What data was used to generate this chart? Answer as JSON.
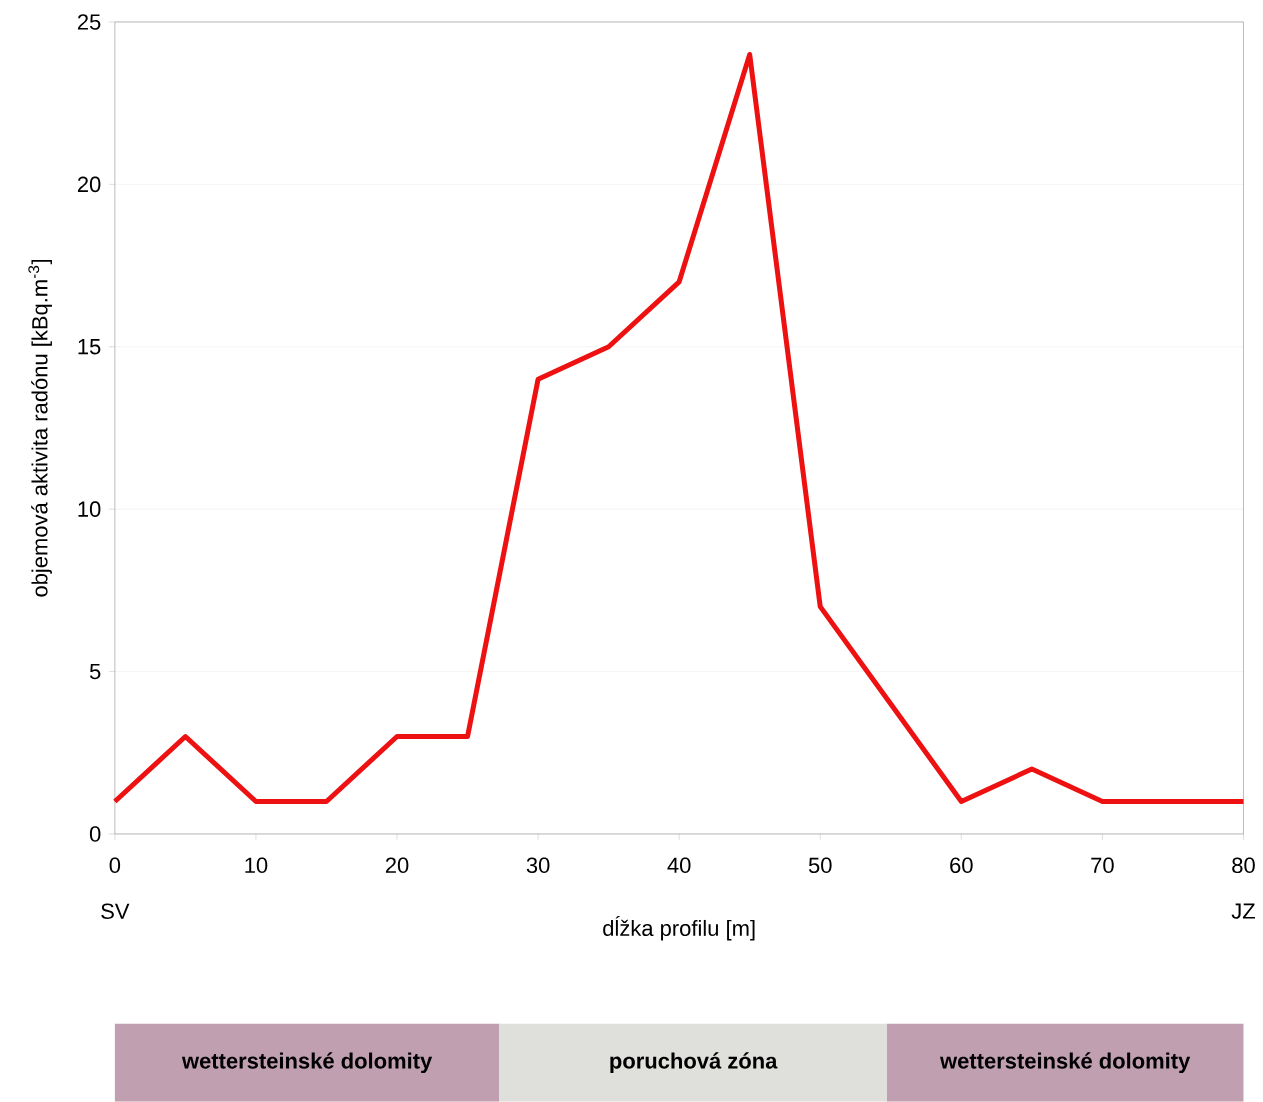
{
  "chart_data": {
    "type": "line",
    "xlabel": "dĺžka profilu [m]",
    "ylabel": "objemová aktivita radónu [kBq.m$^{-3}$]",
    "x": [
      0,
      5,
      10,
      15,
      20,
      25,
      30,
      35,
      40,
      45,
      50,
      55,
      60,
      65,
      70,
      75,
      80
    ],
    "series": [
      {
        "color": "#ee1111",
        "values": [
          1,
          3,
          1,
          1,
          3,
          3,
          14,
          15,
          17,
          24,
          7,
          4,
          1,
          2,
          1,
          1,
          1
        ]
      }
    ],
    "xlim": [
      0,
      80
    ],
    "xticks": [
      0,
      10,
      20,
      30,
      40,
      50,
      60,
      70,
      80
    ],
    "ylim": [
      0,
      25
    ],
    "yticks": [
      0,
      5,
      10,
      15,
      20,
      25
    ],
    "grid": "y",
    "annotations": [
      "SV",
      "JZ",
      "wettersteinské dolomity",
      "poruchová zóna",
      "wettersteinské dolomity"
    ]
  }
}
